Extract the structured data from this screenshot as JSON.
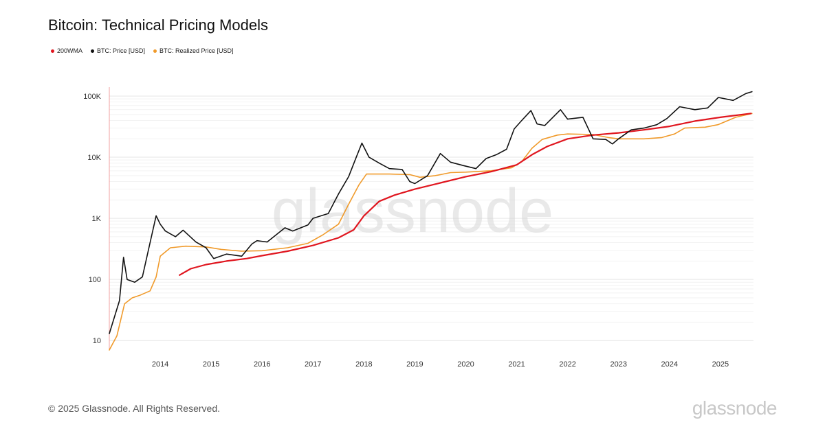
{
  "header": {
    "title": "Bitcoin: Technical Pricing Models"
  },
  "legend": [
    {
      "label": "200WMA",
      "color": "#e0161f"
    },
    {
      "label": "BTC: Price [USD]",
      "color": "#111111"
    },
    {
      "label": "BTC: Realized Price [USD]",
      "color": "#f09a2a"
    }
  ],
  "watermark": "glassnode",
  "footer": {
    "copyright": "© 2025 Glassnode. All Rights Reserved.",
    "brand": "glassnode"
  },
  "chart_data": {
    "type": "line",
    "title": "Bitcoin: Technical Pricing Models",
    "xlabel": "",
    "ylabel": "",
    "y_scale": "log",
    "ylim": [
      7,
      140000
    ],
    "xlim": [
      2013.0,
      2025.65
    ],
    "x_ticks": [
      2014,
      2015,
      2016,
      2017,
      2018,
      2019,
      2020,
      2021,
      2022,
      2023,
      2024,
      2025
    ],
    "x_tick_labels": [
      "2014",
      "2015",
      "2016",
      "2017",
      "2018",
      "2019",
      "2020",
      "2021",
      "2022",
      "2023",
      "2024",
      "2025"
    ],
    "y_ticks": [
      10,
      100,
      1000,
      10000,
      100000
    ],
    "y_tick_labels": [
      "10",
      "100",
      "1K",
      "10K",
      "100K"
    ],
    "grid": true,
    "legend_position": "top-left",
    "series": [
      {
        "name": "200WMA",
        "color": "#e0161f",
        "x": [
          2014.38,
          2014.6,
          2014.9,
          2015.3,
          2015.7,
          2016.0,
          2016.5,
          2017.0,
          2017.5,
          2017.8,
          2018.0,
          2018.3,
          2018.6,
          2019.0,
          2019.5,
          2020.0,
          2020.5,
          2021.0,
          2021.3,
          2021.6,
          2022.0,
          2022.5,
          2023.0,
          2023.5,
          2024.0,
          2024.5,
          2025.0,
          2025.6
        ],
        "values": [
          118,
          150,
          175,
          200,
          220,
          245,
          290,
          360,
          480,
          650,
          1100,
          1900,
          2400,
          3000,
          3800,
          4800,
          5800,
          7500,
          11000,
          15000,
          20000,
          23000,
          25000,
          28000,
          32000,
          39000,
          45000,
          52000
        ]
      },
      {
        "name": "BTC: Price [USD]",
        "color": "#111111",
        "x": [
          2013.0,
          2013.2,
          2013.28,
          2013.35,
          2013.5,
          2013.65,
          2013.8,
          2013.92,
          2014.0,
          2014.1,
          2014.3,
          2014.45,
          2014.7,
          2014.9,
          2015.05,
          2015.3,
          2015.6,
          2015.8,
          2015.9,
          2016.1,
          2016.45,
          2016.6,
          2016.9,
          2017.0,
          2017.3,
          2017.5,
          2017.7,
          2017.85,
          2017.96,
          2018.1,
          2018.3,
          2018.5,
          2018.75,
          2018.9,
          2019.0,
          2019.25,
          2019.5,
          2019.7,
          2019.95,
          2020.2,
          2020.4,
          2020.6,
          2020.8,
          2020.95,
          2021.1,
          2021.28,
          2021.4,
          2021.55,
          2021.86,
          2022.0,
          2022.3,
          2022.5,
          2022.75,
          2022.88,
          2023.0,
          2023.25,
          2023.5,
          2023.75,
          2023.95,
          2024.2,
          2024.5,
          2024.75,
          2024.96,
          2025.25,
          2025.5,
          2025.62
        ],
        "values": [
          13,
          45,
          230,
          100,
          90,
          110,
          400,
          1100,
          800,
          620,
          500,
          640,
          410,
          330,
          220,
          260,
          240,
          380,
          430,
          410,
          700,
          620,
          780,
          1000,
          1200,
          2500,
          4800,
          10000,
          17000,
          10000,
          8000,
          6500,
          6300,
          4000,
          3700,
          5000,
          11500,
          8300,
          7300,
          6500,
          9500,
          11000,
          13500,
          29000,
          40000,
          58000,
          35000,
          33000,
          60000,
          42000,
          45000,
          20000,
          19500,
          16500,
          20000,
          28000,
          30000,
          34000,
          43000,
          67000,
          60000,
          64000,
          95000,
          85000,
          110000,
          118000
        ]
      },
      {
        "name": "BTC: Realized Price [USD]",
        "color": "#f09a2a",
        "x": [
          2013.0,
          2013.15,
          2013.3,
          2013.45,
          2013.6,
          2013.8,
          2013.92,
          2014.0,
          2014.2,
          2014.5,
          2014.9,
          2015.2,
          2015.6,
          2016.0,
          2016.5,
          2016.9,
          2017.2,
          2017.5,
          2017.7,
          2017.9,
          2018.05,
          2018.5,
          2018.9,
          2019.1,
          2019.4,
          2019.7,
          2020.0,
          2020.5,
          2020.9,
          2021.1,
          2021.3,
          2021.5,
          2021.8,
          2022.0,
          2022.5,
          2022.8,
          2023.0,
          2023.5,
          2023.85,
          2024.1,
          2024.3,
          2024.7,
          2024.95,
          2025.3,
          2025.62
        ],
        "values": [
          7,
          12,
          40,
          50,
          55,
          65,
          110,
          240,
          330,
          350,
          340,
          310,
          290,
          295,
          330,
          390,
          540,
          800,
          1700,
          3500,
          5300,
          5300,
          5200,
          4700,
          5000,
          5600,
          5700,
          6000,
          6700,
          8500,
          14000,
          19500,
          23000,
          24000,
          23500,
          21000,
          20000,
          20000,
          21000,
          24000,
          30000,
          31000,
          34000,
          45000,
          52000
        ]
      }
    ]
  }
}
